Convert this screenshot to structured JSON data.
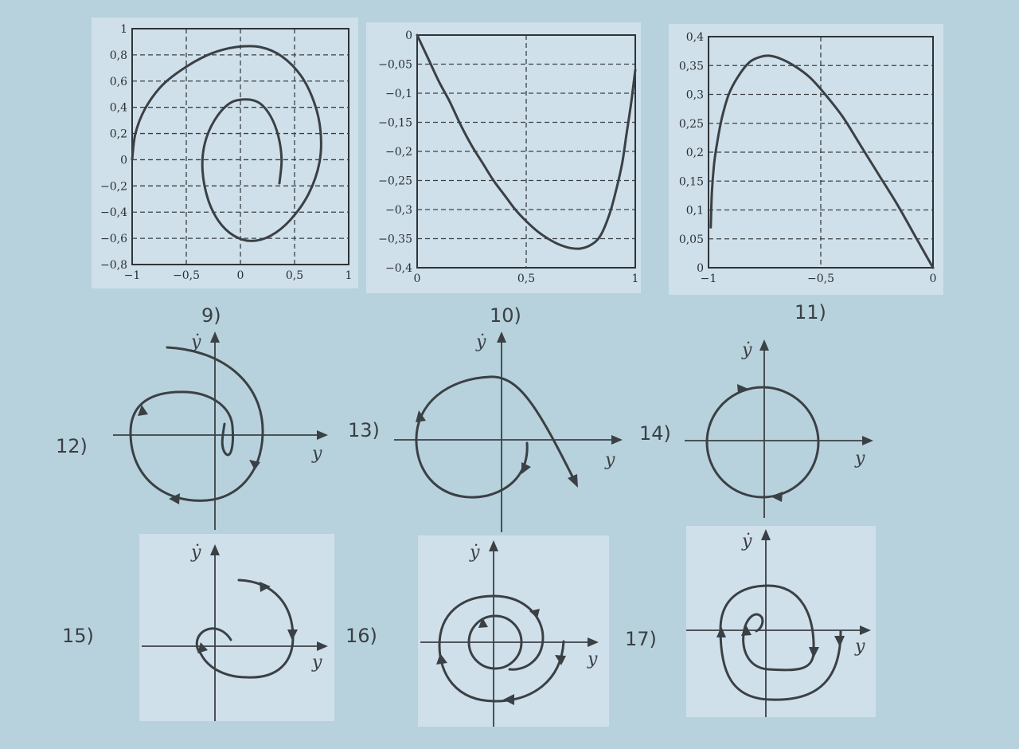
{
  "chart_data": [
    {
      "id": "9",
      "panel_label": "9)",
      "type": "line",
      "xlim": [
        -1,
        1
      ],
      "ylim": [
        -0.8,
        1
      ],
      "xticks": [
        -1,
        -0.5,
        0,
        0.5,
        1
      ],
      "xtick_labels": [
        "−1",
        "−0,5",
        "0",
        "0,5",
        "1"
      ],
      "yticks": [
        1,
        0.8,
        0.6,
        0.4,
        0.2,
        0,
        -0.2,
        -0.4,
        -0.6,
        -0.8
      ],
      "ytick_labels": [
        "1",
        "0,8",
        "0,6",
        "0,4",
        "0,2",
        "0",
        "−0,2",
        "−0,4",
        "−0,6",
        "−0,8"
      ],
      "grid": true,
      "series": [
        {
          "x": [
            0.36,
            0.38,
            0.35,
            0.28,
            0.18,
            0.05,
            -0.1,
            -0.24,
            -0.33,
            -0.35,
            -0.3,
            -0.2,
            -0.06,
            0.1,
            0.28,
            0.46,
            0.63,
            0.73,
            0.74,
            0.68,
            0.56,
            0.38,
            0.18,
            -0.04,
            -0.27,
            -0.5,
            -0.72,
            -0.88,
            -0.97,
            -1.0
          ],
          "y": [
            -0.18,
            0.0,
            0.18,
            0.33,
            0.43,
            0.46,
            0.43,
            0.3,
            0.12,
            -0.08,
            -0.3,
            -0.47,
            -0.58,
            -0.62,
            -0.58,
            -0.46,
            -0.26,
            -0.02,
            0.22,
            0.44,
            0.64,
            0.79,
            0.86,
            0.86,
            0.81,
            0.71,
            0.57,
            0.39,
            0.2,
            0.0
          ]
        }
      ]
    },
    {
      "id": "10",
      "panel_label": "10)",
      "type": "line",
      "xlim": [
        0,
        1
      ],
      "ylim": [
        -0.4,
        0
      ],
      "xticks": [
        0,
        0.5,
        1
      ],
      "xtick_labels": [
        "0",
        "0,5",
        "1"
      ],
      "yticks": [
        0,
        -0.05,
        -0.1,
        -0.15,
        -0.2,
        -0.25,
        -0.3,
        -0.35,
        -0.4
      ],
      "ytick_labels": [
        "0",
        "−0,05",
        "−0,1",
        "−0,15",
        "−0,2",
        "−0,25",
        "−0,3",
        "−0,35",
        "−0,4"
      ],
      "grid": true,
      "series": [
        {
          "x": [
            0.0,
            0.05,
            0.1,
            0.15,
            0.2,
            0.25,
            0.3,
            0.35,
            0.4,
            0.45,
            0.5,
            0.55,
            0.6,
            0.65,
            0.7,
            0.75,
            0.8,
            0.84,
            0.88,
            0.91,
            0.94,
            0.96,
            0.98,
            0.99,
            1.0
          ],
          "y": [
            0.0,
            -0.04,
            -0.08,
            -0.115,
            -0.155,
            -0.19,
            -0.22,
            -0.25,
            -0.275,
            -0.3,
            -0.32,
            -0.337,
            -0.35,
            -0.36,
            -0.366,
            -0.367,
            -0.36,
            -0.345,
            -0.31,
            -0.27,
            -0.22,
            -0.17,
            -0.12,
            -0.09,
            -0.06
          ]
        }
      ]
    },
    {
      "id": "11",
      "panel_label": "11)",
      "type": "line",
      "xlim": [
        -1,
        0
      ],
      "ylim": [
        0,
        0.4
      ],
      "xticks": [
        -1,
        -0.5,
        0
      ],
      "xtick_labels": [
        "−1",
        "−0,5",
        "0"
      ],
      "yticks": [
        0.4,
        0.35,
        0.3,
        0.25,
        0.2,
        0.15,
        0.1,
        0.05,
        0
      ],
      "ytick_labels": [
        "0,4",
        "0,35",
        "0,3",
        "0,25",
        "0,2",
        "0,15",
        "0,1",
        "0,05",
        "0"
      ],
      "grid": true,
      "series": [
        {
          "x": [
            -0.99,
            -0.985,
            -0.975,
            -0.96,
            -0.94,
            -0.91,
            -0.87,
            -0.82,
            -0.77,
            -0.73,
            -0.68,
            -0.62,
            -0.55,
            -0.48,
            -0.4,
            -0.32,
            -0.24,
            -0.16,
            -0.08,
            0.0
          ],
          "y": [
            0.07,
            0.13,
            0.18,
            0.22,
            0.26,
            0.3,
            0.33,
            0.355,
            0.365,
            0.367,
            0.362,
            0.35,
            0.33,
            0.3,
            0.26,
            0.21,
            0.16,
            0.11,
            0.055,
            0.0
          ]
        }
      ]
    }
  ],
  "phase_portraits": [
    {
      "id": "12",
      "label": "12)",
      "x_axis_label": "y",
      "y_axis_label": "ẏ"
    },
    {
      "id": "13",
      "label": "13)",
      "x_axis_label": "y",
      "y_axis_label": "ẏ"
    },
    {
      "id": "14",
      "label": "14)",
      "x_axis_label": "y",
      "y_axis_label": "ẏ"
    },
    {
      "id": "15",
      "label": "15)",
      "x_axis_label": "y",
      "y_axis_label": "ẏ"
    },
    {
      "id": "16",
      "label": "16)",
      "x_axis_label": "y",
      "y_axis_label": "ẏ"
    },
    {
      "id": "17",
      "label": "17)",
      "x_axis_label": "y",
      "y_axis_label": "ẏ"
    }
  ]
}
